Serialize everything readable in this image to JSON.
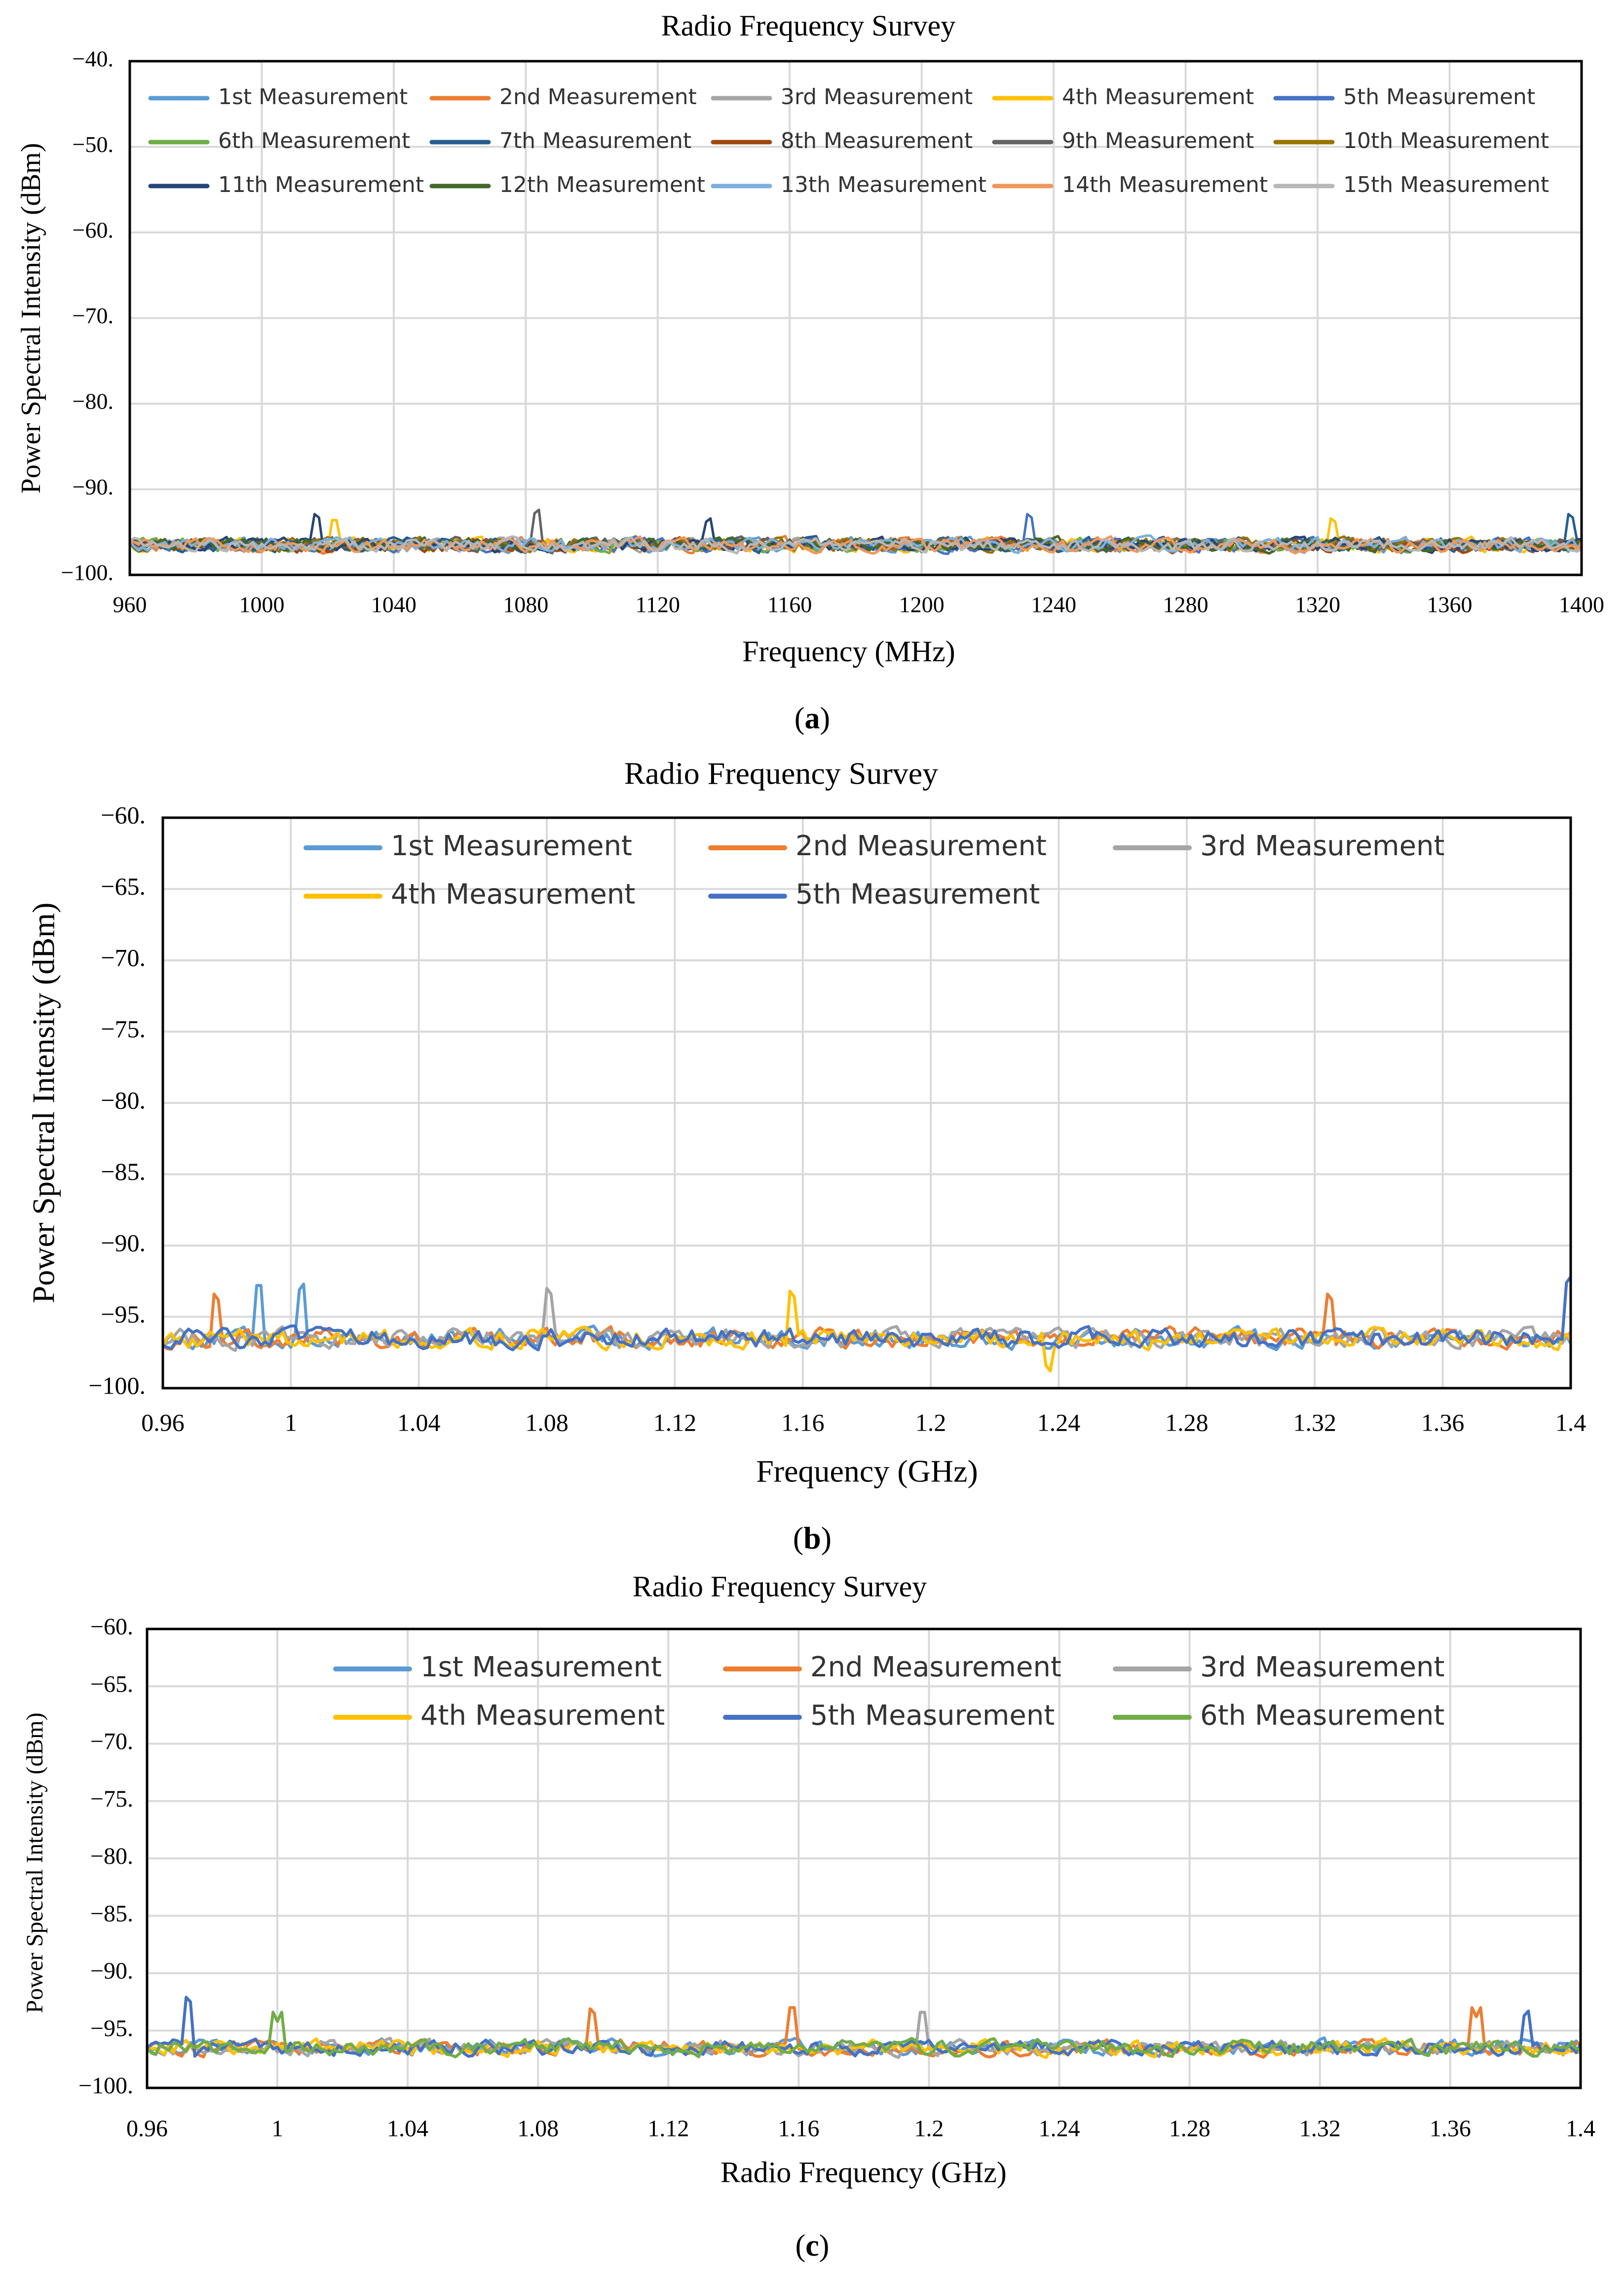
{
  "palette": [
    "#5B9BD5",
    "#ED7D31",
    "#A5A5A5",
    "#FFC000",
    "#4472C4",
    "#70AD47",
    "#255E91",
    "#9E480E",
    "#636363",
    "#997300",
    "#264478",
    "#43682B",
    "#7CAFDD",
    "#F1975A",
    "#B7B7B7"
  ],
  "chart_data": [
    {
      "id": "a",
      "type": "line",
      "title": "Radio Frequency Survey",
      "xlabel": "Frequency (MHz)",
      "ylabel": "Power Spectral Intensity (dBm)",
      "caption": "a",
      "xlim": [
        960,
        1400
      ],
      "ylim": [
        -100,
        -40
      ],
      "xticks": [
        960,
        1000,
        1040,
        1080,
        1120,
        1160,
        1200,
        1240,
        1280,
        1320,
        1360,
        1400
      ],
      "xtick_labels": [
        "960",
        "1000",
        "1040",
        "1080",
        "1120",
        "1160",
        "1200",
        "1240",
        "1280",
        "1320",
        "1360",
        "1400"
      ],
      "yticks": [
        -40,
        -50,
        -60,
        -70,
        -80,
        -90,
        -100
      ],
      "ytick_labels": [
        "−40.",
        "−50.",
        "−60.",
        "−70.",
        "−80.",
        "−90.",
        "−100."
      ],
      "legend_columns": 5,
      "noise_floor_dbm": -96.5,
      "noise_spread_dbm": 1.2,
      "series": [
        {
          "name": "1st Measurement",
          "peaks": []
        },
        {
          "name": "2nd Measurement",
          "peaks": []
        },
        {
          "name": "3rd Measurement",
          "peaks": []
        },
        {
          "name": "4th Measurement",
          "peaks": [
            [
              1022,
              -94
            ],
            [
              1325,
              -94
            ]
          ]
        },
        {
          "name": "5th Measurement",
          "peaks": [
            [
              1233,
              -93.5
            ]
          ]
        },
        {
          "name": "6th Measurement",
          "peaks": []
        },
        {
          "name": "7th Measurement",
          "peaks": [
            [
              1397,
              -93.5
            ]
          ]
        },
        {
          "name": "8th Measurement",
          "peaks": []
        },
        {
          "name": "9th Measurement",
          "peaks": [
            [
              1083,
              -93
            ]
          ]
        },
        {
          "name": "10th Measurement",
          "peaks": []
        },
        {
          "name": "11th Measurement",
          "peaks": [
            [
              1017,
              -93.5
            ],
            [
              1135,
              -94
            ]
          ]
        },
        {
          "name": "12th Measurement",
          "peaks": []
        },
        {
          "name": "13th Measurement",
          "peaks": []
        },
        {
          "name": "14th Measurement",
          "peaks": []
        },
        {
          "name": "15th Measurement",
          "peaks": []
        }
      ]
    },
    {
      "id": "b",
      "type": "line",
      "title": "Radio Frequency Survey",
      "xlabel": "Frequency (GHz)",
      "ylabel": "Power Spectral Intensity (dBm)",
      "caption": "b",
      "xlim": [
        0.96,
        1.4
      ],
      "ylim": [
        -100,
        -60
      ],
      "xticks": [
        0.96,
        1.0,
        1.04,
        1.08,
        1.12,
        1.16,
        1.2,
        1.24,
        1.28,
        1.32,
        1.36,
        1.4
      ],
      "xtick_labels": [
        "0.96",
        "1",
        "1.04",
        "1.08",
        "1.12",
        "1.16",
        "1.2",
        "1.24",
        "1.28",
        "1.32",
        "1.36",
        "1.4"
      ],
      "yticks": [
        -60,
        -65,
        -70,
        -75,
        -80,
        -85,
        -90,
        -95,
        -100
      ],
      "ytick_labels": [
        "−60.",
        "−65.",
        "−70.",
        "−75.",
        "−80.",
        "−85.",
        "−90.",
        "−95.",
        "−100."
      ],
      "legend_columns": 3,
      "noise_floor_dbm": -96.5,
      "noise_spread_dbm": 1.0,
      "series": [
        {
          "name": "1st Measurement",
          "peaks": [
            [
              0.99,
              -93.2
            ],
            [
              1.003,
              -93.3
            ]
          ]
        },
        {
          "name": "2nd Measurement",
          "peaks": [
            [
              0.977,
              -94
            ],
            [
              1.325,
              -94
            ]
          ]
        },
        {
          "name": "3rd Measurement",
          "peaks": [
            [
              1.081,
              -93.6
            ]
          ]
        },
        {
          "name": "4th Measurement",
          "peaks": [
            [
              1.157,
              -93.8
            ],
            [
              1.237,
              -99
            ]
          ]
        },
        {
          "name": "5th Measurement",
          "peaks": [
            [
              1.399,
              -92.8
            ]
          ]
        }
      ]
    },
    {
      "id": "c",
      "type": "line",
      "title": "Radio Frequency Survey",
      "xlabel": "Radio Frequency (GHz)",
      "ylabel": "Power Spectral Intensity (dBm)",
      "caption": "c",
      "xlim": [
        0.96,
        1.4
      ],
      "ylim": [
        -100,
        -60
      ],
      "xticks": [
        0.96,
        1.0,
        1.04,
        1.08,
        1.12,
        1.16,
        1.2,
        1.24,
        1.28,
        1.32,
        1.36,
        1.4
      ],
      "xtick_labels": [
        "0.96",
        "1",
        "1.04",
        "1.08",
        "1.12",
        "1.16",
        "1.2",
        "1.24",
        "1.28",
        "1.32",
        "1.36",
        "1.4"
      ],
      "yticks": [
        -60,
        -65,
        -70,
        -75,
        -80,
        -85,
        -90,
        -95,
        -100
      ],
      "ytick_labels": [
        "−60.",
        "−65.",
        "−70.",
        "−75.",
        "−80.",
        "−85.",
        "−90.",
        "−95.",
        "−100."
      ],
      "legend_columns": 3,
      "noise_floor_dbm": -96.5,
      "noise_spread_dbm": 1.0,
      "series": [
        {
          "name": "1st Measurement",
          "peaks": []
        },
        {
          "name": "2nd Measurement",
          "peaks": [
            [
              1.097,
              -93.7
            ],
            [
              1.158,
              -93.4
            ],
            [
              1.368,
              -93.8
            ]
          ]
        },
        {
          "name": "3rd Measurement",
          "peaks": [
            [
              1.198,
              -93.8
            ]
          ]
        },
        {
          "name": "4th Measurement",
          "peaks": []
        },
        {
          "name": "5th Measurement",
          "peaks": [
            [
              0.973,
              -92.7
            ],
            [
              1.383,
              -93.9
            ]
          ]
        },
        {
          "name": "6th Measurement",
          "peaks": [
            [
              1.0,
              -94.2
            ]
          ]
        }
      ]
    }
  ]
}
